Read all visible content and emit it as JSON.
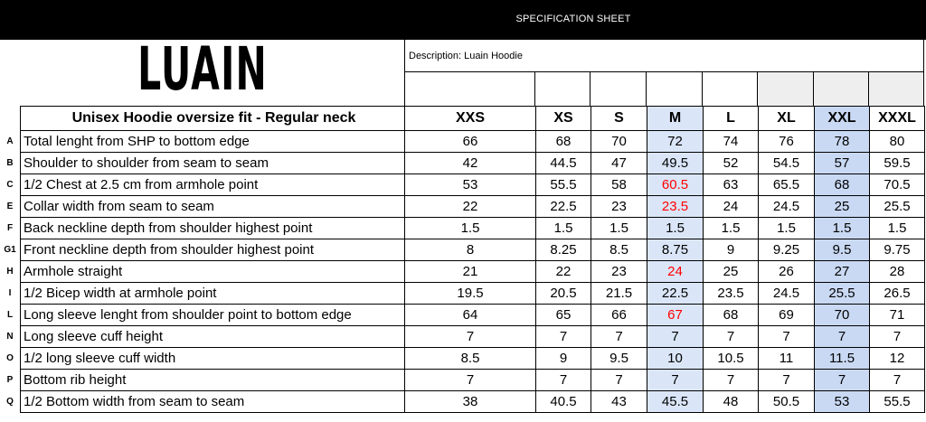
{
  "header": {
    "title": "SPECIFICATION SHEET"
  },
  "logo": {
    "text": "LUAIN"
  },
  "description": "Description: Luain Hoodie",
  "colors": {
    "m_highlight": "#dae6f8",
    "xxl_highlight": "#c9d9f3",
    "changed_value": "#ff0000",
    "empty_header_grey": "#eeeeee"
  },
  "table": {
    "title": "Unisex Hoodie oversize fit - Regular neck",
    "sizes": [
      "XXS",
      "XS",
      "S",
      "M",
      "L",
      "XL",
      "XXL",
      "XXXL"
    ],
    "rows": [
      {
        "code": "A",
        "label": "Total lenght from SHP to bottom edge",
        "values": [
          "66",
          "68",
          "70",
          "72",
          "74",
          "76",
          "78",
          "80"
        ],
        "red": []
      },
      {
        "code": "B",
        "label": "Shoulder to shoulder from seam to seam",
        "values": [
          "42",
          "44.5",
          "47",
          "49.5",
          "52",
          "54.5",
          "57",
          "59.5"
        ],
        "red": []
      },
      {
        "code": "C",
        "label": "1/2 Chest at 2.5 cm from armhole point",
        "values": [
          "53",
          "55.5",
          "58",
          "60.5",
          "63",
          "65.5",
          "68",
          "70.5"
        ],
        "red": [
          3
        ]
      },
      {
        "code": "E",
        "label": "Collar width from seam to seam",
        "values": [
          "22",
          "22.5",
          "23",
          "23.5",
          "24",
          "24.5",
          "25",
          "25.5"
        ],
        "red": [
          3
        ]
      },
      {
        "code": "F",
        "label": "Back neckline depth from shoulder highest point",
        "values": [
          "1.5",
          "1.5",
          "1.5",
          "1.5",
          "1.5",
          "1.5",
          "1.5",
          "1.5"
        ],
        "red": []
      },
      {
        "code": "G1",
        "label": "Front neckline depth from shoulder highest point",
        "values": [
          "8",
          "8.25",
          "8.5",
          "8.75",
          "9",
          "9.25",
          "9.5",
          "9.75"
        ],
        "red": []
      },
      {
        "code": "H",
        "label": "Armhole straight",
        "values": [
          "21",
          "22",
          "23",
          "24",
          "25",
          "26",
          "27",
          "28"
        ],
        "red": [
          3
        ]
      },
      {
        "code": "I",
        "label": "1/2 Bicep width at armhole point",
        "values": [
          "19.5",
          "20.5",
          "21.5",
          "22.5",
          "23.5",
          "24.5",
          "25.5",
          "26.5"
        ],
        "red": []
      },
      {
        "code": "L",
        "label": "Long sleeve lenght from shoulder point to bottom edge",
        "values": [
          "64",
          "65",
          "66",
          "67",
          "68",
          "69",
          "70",
          "71"
        ],
        "red": [
          3
        ]
      },
      {
        "code": "N",
        "label": "Long sleeve cuff height",
        "values": [
          "7",
          "7",
          "7",
          "7",
          "7",
          "7",
          "7",
          "7"
        ],
        "red": []
      },
      {
        "code": "O",
        "label": "1/2 long sleeve cuff width",
        "values": [
          "8.5",
          "9",
          "9.5",
          "10",
          "10.5",
          "11",
          "11.5",
          "12"
        ],
        "red": []
      },
      {
        "code": "P",
        "label": "Bottom rib height",
        "values": [
          "7",
          "7",
          "7",
          "7",
          "7",
          "7",
          "7",
          "7"
        ],
        "red": []
      },
      {
        "code": "Q",
        "label": "1/2 Bottom width from seam to seam",
        "values": [
          "38",
          "40.5",
          "43",
          "45.5",
          "48",
          "50.5",
          "53",
          "55.5"
        ],
        "red": []
      }
    ]
  }
}
